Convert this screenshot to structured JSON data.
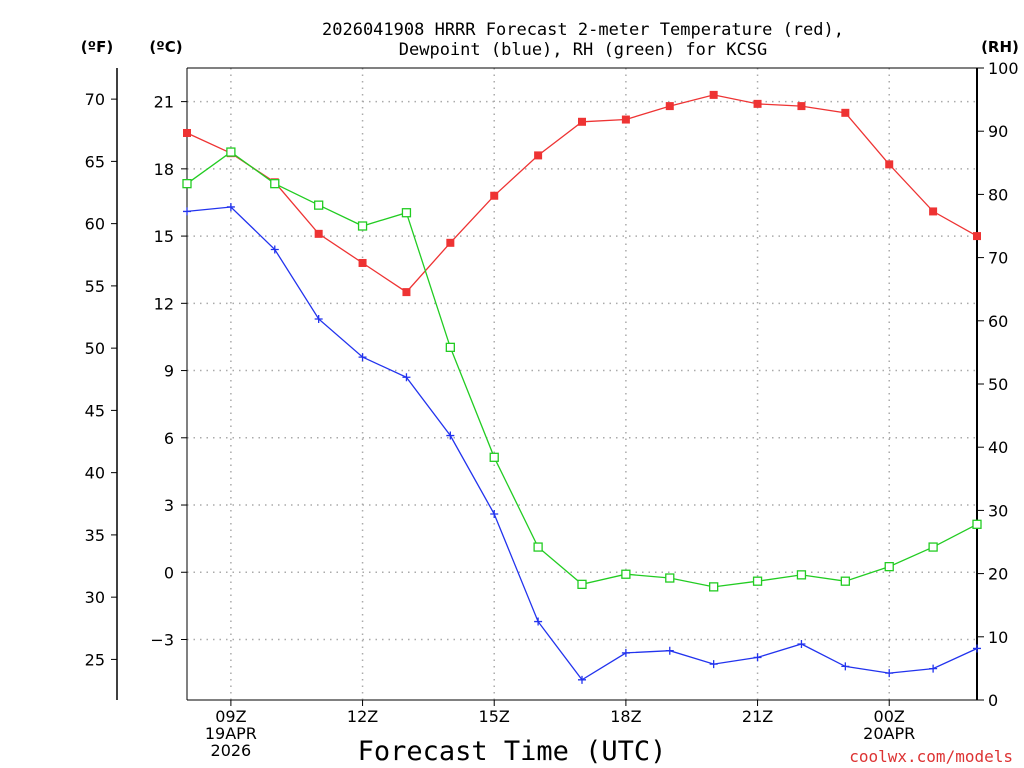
{
  "chart_data": {
    "type": "line",
    "title_line1": "2026041908 HRRR Forecast 2-meter Temperature (red),",
    "title_line2": "Dewpoint (blue), RH (green) for KCSG",
    "xlabel": "Forecast Time (UTC)",
    "credit": "coolwx.com/models",
    "unit_f": "(ºF)",
    "unit_c": "(ºC)",
    "unit_rh": "(RH)",
    "x_hours": [
      8,
      9,
      10,
      11,
      12,
      13,
      14,
      15,
      16,
      17,
      18,
      19,
      20,
      21,
      22,
      23,
      24,
      25,
      26
    ],
    "x_ticks": [
      {
        "hour": 9,
        "lines": [
          "09Z",
          "19APR",
          "2026"
        ]
      },
      {
        "hour": 12,
        "lines": [
          "12Z"
        ]
      },
      {
        "hour": 15,
        "lines": [
          "15Z"
        ]
      },
      {
        "hour": 18,
        "lines": [
          "18Z"
        ]
      },
      {
        "hour": 21,
        "lines": [
          "21Z"
        ]
      },
      {
        "hour": 24,
        "lines": [
          "00Z",
          "20APR"
        ]
      }
    ],
    "celsius_axis": {
      "min": -5.7,
      "max": 22.5,
      "ticks": [
        -3,
        0,
        3,
        6,
        9,
        12,
        15,
        18,
        21
      ],
      "tick_labels": [
        "−3",
        "0",
        "3",
        "6",
        "9",
        "12",
        "15",
        "18",
        "21"
      ]
    },
    "fahrenheit_axis": {
      "ticks": [
        25,
        30,
        35,
        40,
        45,
        50,
        55,
        60,
        65,
        70
      ],
      "tick_labels": [
        "25",
        "30",
        "35",
        "40",
        "45",
        "50",
        "55",
        "60",
        "65",
        "70"
      ]
    },
    "rh_axis": {
      "min": 0,
      "max": 100,
      "ticks": [
        0,
        10,
        20,
        30,
        40,
        50,
        60,
        70,
        80,
        90,
        100
      ],
      "tick_labels": [
        "0",
        "10",
        "20",
        "30",
        "40",
        "50",
        "60",
        "70",
        "80",
        "90",
        "100"
      ]
    },
    "series": [
      {
        "name": "Temperature",
        "axis": "celsius",
        "color": "#ee3333",
        "marker": "filled-square",
        "values": [
          19.6,
          18.7,
          17.4,
          15.1,
          13.8,
          12.5,
          14.7,
          16.8,
          18.6,
          20.1,
          20.2,
          20.8,
          21.3,
          20.9,
          20.8,
          20.5,
          18.2,
          16.1,
          15.0
        ]
      },
      {
        "name": "Dewpoint",
        "axis": "celsius",
        "color": "#2233ee",
        "marker": "plus",
        "values": [
          16.1,
          16.3,
          14.4,
          11.3,
          9.6,
          8.7,
          6.1,
          2.6,
          -2.2,
          -4.8,
          -3.6,
          -3.5,
          -4.1,
          -3.8,
          -3.2,
          -4.2,
          -4.5,
          -4.3,
          -3.4
        ]
      },
      {
        "name": "RH",
        "axis": "rh",
        "color": "#22cc22",
        "marker": "open-square",
        "values": [
          81.7,
          86.7,
          81.7,
          78.3,
          75.0,
          77.1,
          55.8,
          38.4,
          24.2,
          18.3,
          19.9,
          19.3,
          17.9,
          18.8,
          19.8,
          18.8,
          21.1,
          24.2,
          27.8
        ]
      }
    ]
  }
}
